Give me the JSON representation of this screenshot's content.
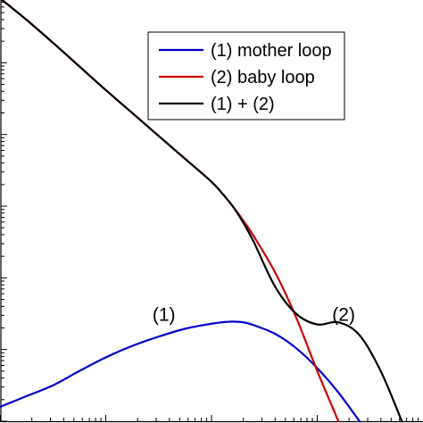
{
  "chart_data": {
    "type": "line",
    "x_scale": "log",
    "y_scale": "log",
    "x": [
      -1.0,
      -0.75,
      -0.5,
      -0.25,
      0.0,
      0.25,
      0.5,
      0.75,
      1.0,
      1.1,
      1.2,
      1.3,
      1.4,
      1.6,
      1.8,
      2.0,
      2.2,
      2.4,
      2.6,
      2.8
    ],
    "series": [
      {
        "name": "(1) mother loop",
        "color": "#0000cc",
        "values": [
          -5.8,
          -5.65,
          -5.5,
          -5.3,
          -5.11,
          -4.95,
          -4.82,
          -4.71,
          -4.64,
          -4.62,
          -4.61,
          -4.62,
          -4.66,
          -4.78,
          -4.98,
          -5.26,
          -5.6,
          -6.0,
          null,
          null
        ]
      },
      {
        "name": "(2) baby loop",
        "color": "#cc0000",
        "values": [
          -0.1,
          -0.4,
          -0.72,
          -1.05,
          -1.38,
          -1.7,
          -2.02,
          -2.34,
          -2.66,
          -2.82,
          -3.0,
          -3.2,
          -3.42,
          -3.92,
          -4.55,
          -5.3,
          -6.0,
          null,
          null,
          null
        ]
      },
      {
        "name": "(1) + (2)",
        "color": "#000000",
        "values": [
          -0.1,
          -0.4,
          -0.72,
          -1.05,
          -1.38,
          -1.7,
          -2.02,
          -2.34,
          -2.66,
          -2.82,
          -3.0,
          -3.23,
          -3.5,
          -4.12,
          -4.5,
          -4.65,
          -4.62,
          -4.8,
          -5.3,
          -6.0
        ]
      }
    ],
    "xlim": [
      -1.0,
      3.0
    ],
    "ylim": [
      -6.0,
      0.0
    ],
    "x_major_ticks": [
      -1,
      0,
      1,
      2,
      3
    ],
    "y_major_ticks": [
      -6,
      -5,
      -4,
      -3,
      -2,
      -1,
      0
    ],
    "legend_position": "top-right",
    "annotations": [
      {
        "text": "(1)",
        "x": 0.55,
        "y": -4.6
      },
      {
        "text": "(2)",
        "x": 2.25,
        "y": -4.6
      }
    ],
    "grid": false,
    "title": "",
    "xlabel": "",
    "ylabel": ""
  }
}
